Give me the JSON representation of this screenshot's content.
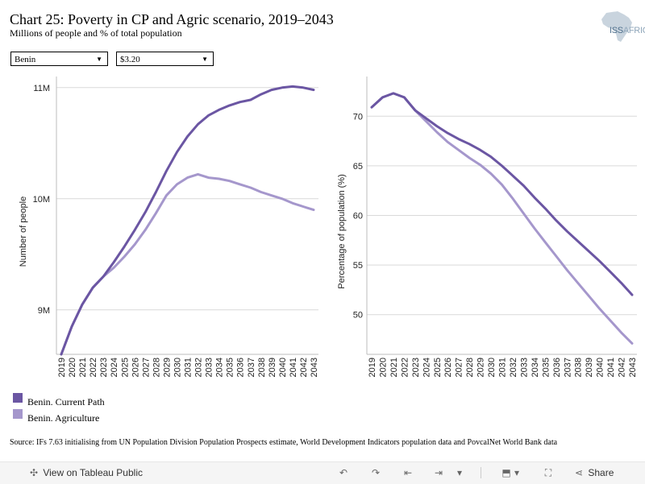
{
  "title": "Chart 25: Poverty in CP and Agric scenario, 2019–2043",
  "subtitle": "Millions of people and % of total population",
  "logo": {
    "main": "ISS",
    "suffix": "AFRICA",
    "icon": "africa-map-icon"
  },
  "filters": {
    "country": {
      "value": "Benin",
      "icon": "dropdown-arrow-icon"
    },
    "threshold": {
      "value": "$3.20",
      "icon": "dropdown-arrow-icon"
    }
  },
  "colors": {
    "current_path": "#6b56a3",
    "agriculture": "#a597cc",
    "grid": "#d9d9d9",
    "axis": "#bdbdbd"
  },
  "chart_data": [
    {
      "type": "line",
      "title": "",
      "xlabel": "",
      "ylabel": "Number of people",
      "x": [
        2019,
        2020,
        2021,
        2022,
        2023,
        2024,
        2025,
        2026,
        2027,
        2028,
        2029,
        2030,
        2031,
        2032,
        2033,
        2034,
        2035,
        2036,
        2037,
        2038,
        2039,
        2040,
        2041,
        2042,
        2043
      ],
      "ylim": [
        8.6,
        11.1
      ],
      "yticks": [
        9,
        10,
        11
      ],
      "ytick_labels": [
        "9M",
        "10M",
        "11M"
      ],
      "series": [
        {
          "name": "Benin. Current Path",
          "values": [
            8.6,
            8.85,
            9.05,
            9.2,
            9.3,
            9.43,
            9.57,
            9.72,
            9.88,
            10.06,
            10.25,
            10.42,
            10.56,
            10.67,
            10.75,
            10.8,
            10.84,
            10.87,
            10.89,
            10.94,
            10.98,
            11.0,
            11.01,
            11.0,
            10.98
          ]
        },
        {
          "name": "Benin. Agriculture",
          "values": [
            8.6,
            8.85,
            9.05,
            9.2,
            9.3,
            9.38,
            9.48,
            9.59,
            9.72,
            9.87,
            10.03,
            10.13,
            10.19,
            10.22,
            10.19,
            10.18,
            10.16,
            10.13,
            10.1,
            10.06,
            10.03,
            10.0,
            9.96,
            9.93,
            9.9
          ]
        }
      ],
      "grid": true
    },
    {
      "type": "line",
      "title": "",
      "xlabel": "",
      "ylabel": "Percentage of population (%)",
      "x": [
        2019,
        2020,
        2021,
        2022,
        2023,
        2024,
        2025,
        2026,
        2027,
        2028,
        2029,
        2030,
        2031,
        2032,
        2033,
        2034,
        2035,
        2036,
        2037,
        2038,
        2039,
        2040,
        2041,
        2042,
        2043
      ],
      "ylim": [
        46,
        74
      ],
      "yticks": [
        50,
        55,
        60,
        65,
        70
      ],
      "ytick_labels": [
        "50",
        "55",
        "60",
        "65",
        "70"
      ],
      "series": [
        {
          "name": "Benin. Current Path",
          "values": [
            70.9,
            71.9,
            72.3,
            71.9,
            70.6,
            69.8,
            69.0,
            68.3,
            67.7,
            67.2,
            66.6,
            65.9,
            65.0,
            64.0,
            63.0,
            61.8,
            60.7,
            59.5,
            58.4,
            57.4,
            56.4,
            55.4,
            54.3,
            53.2,
            52.0
          ]
        },
        {
          "name": "Benin. Agriculture",
          "values": [
            70.9,
            71.9,
            72.3,
            71.9,
            70.6,
            69.5,
            68.4,
            67.4,
            66.6,
            65.8,
            65.1,
            64.2,
            63.1,
            61.7,
            60.2,
            58.7,
            57.3,
            55.9,
            54.5,
            53.2,
            51.9,
            50.6,
            49.4,
            48.2,
            47.1
          ]
        }
      ],
      "grid": true
    }
  ],
  "legend": [
    {
      "label": "Benin. Current Path",
      "color": "#6b56a3"
    },
    {
      "label": "Benin. Agriculture",
      "color": "#a597cc"
    }
  ],
  "source": "Source: IFs 7.63 initialising from UN Population Division Population Prospects estimate, World Development Indicators population data and PovcalNet World Bank data",
  "toolbar": {
    "view_label": "View on Tableau Public",
    "share_label": "Share",
    "icons": [
      "tableau-logo-icon",
      "undo-icon",
      "redo-icon",
      "revert-icon",
      "pause-icon",
      "dropdown-icon",
      "download-icon",
      "fullscreen-icon",
      "share-icon"
    ]
  }
}
